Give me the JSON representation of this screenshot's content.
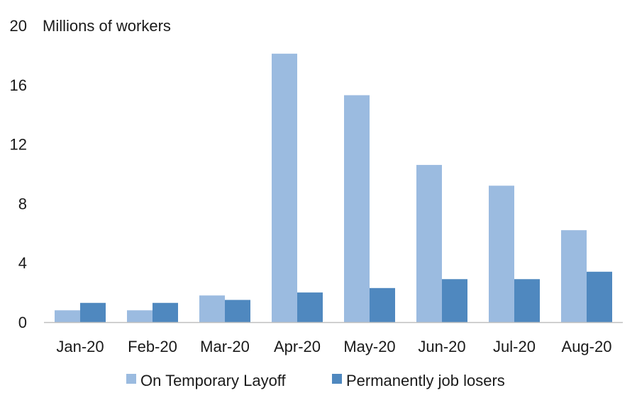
{
  "chart_data": {
    "type": "bar",
    "ylabel": "Millions of workers",
    "ylim": [
      0,
      20
    ],
    "yticks": [
      0,
      4,
      8,
      12,
      16,
      20
    ],
    "categories": [
      "Jan-20",
      "Feb-20",
      "Mar-20",
      "Apr-20",
      "May-20",
      "Jun-20",
      "Jul-20",
      "Aug-20"
    ],
    "series": [
      {
        "name": "On Temporary Layoff",
        "color": "#9bbbe0",
        "values": [
          0.8,
          0.8,
          1.8,
          18.1,
          15.3,
          10.6,
          9.2,
          6.2
        ]
      },
      {
        "name": "Permanently job losers",
        "color": "#4f88bf",
        "values": [
          1.3,
          1.3,
          1.5,
          2.0,
          2.3,
          2.9,
          2.9,
          3.4
        ]
      }
    ],
    "grid": false,
    "legend_position": "bottom"
  }
}
